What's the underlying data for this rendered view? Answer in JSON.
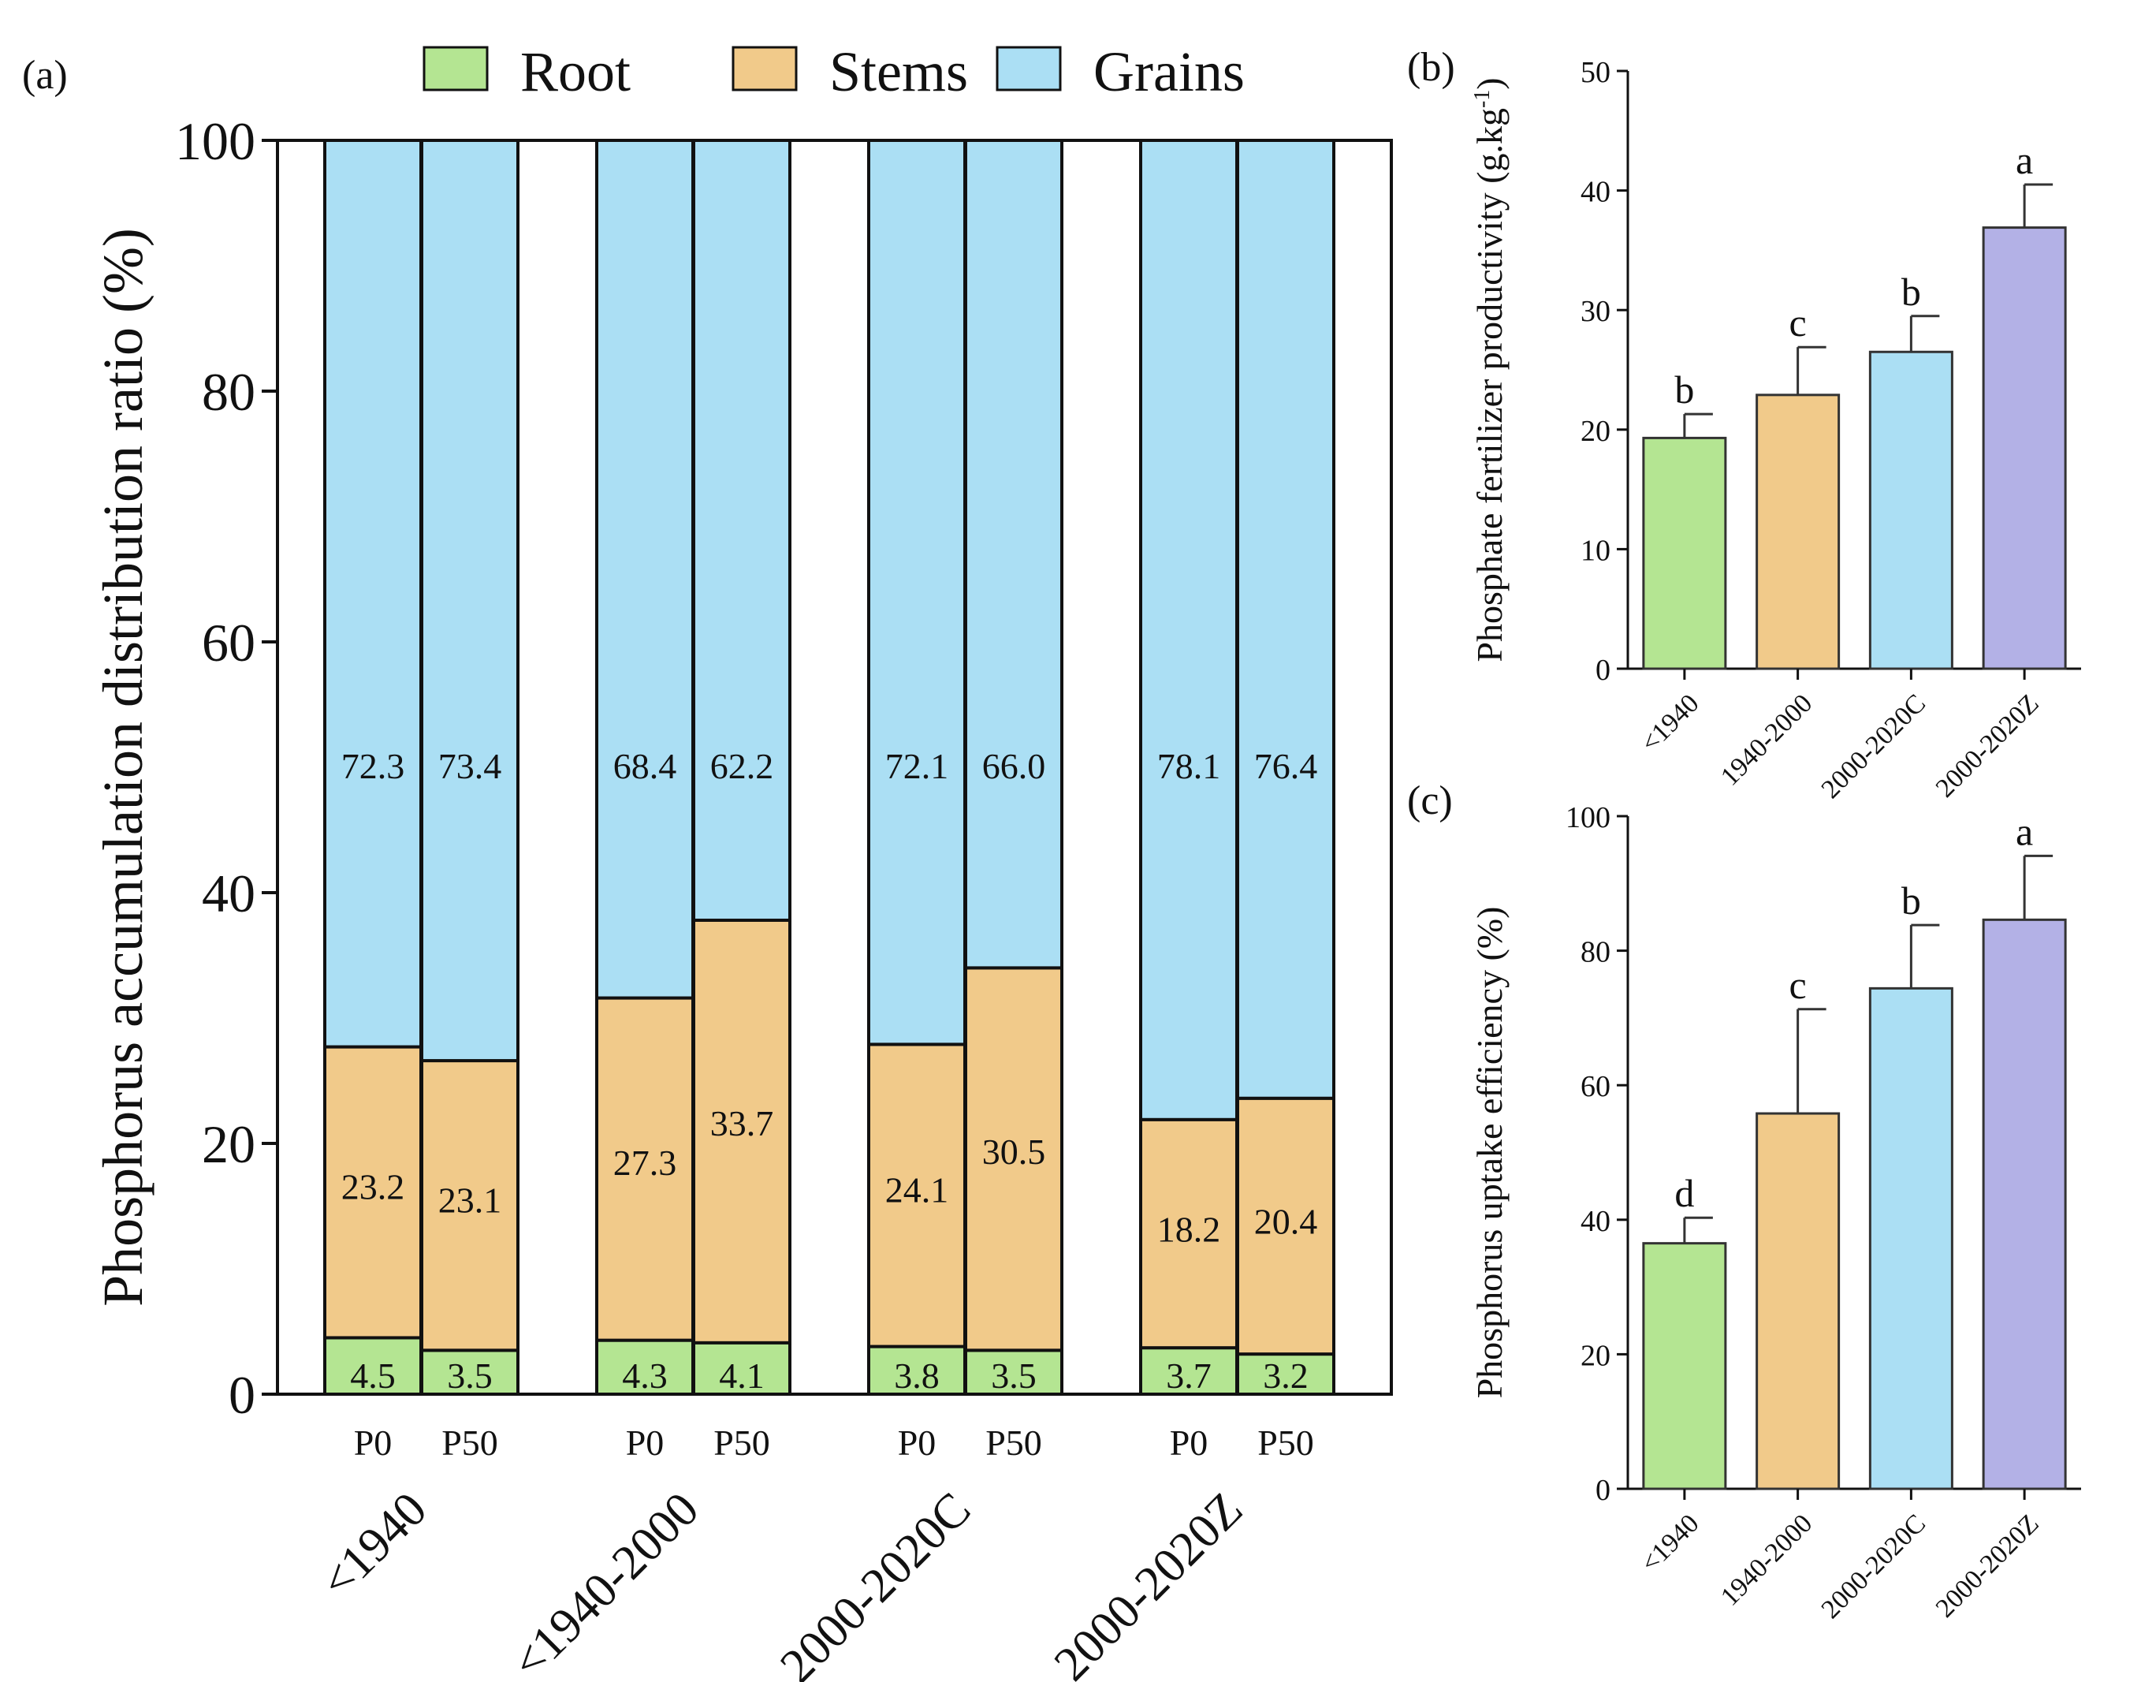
{
  "colors": {
    "root": "#b4e592",
    "stems": "#f1ca8a",
    "grains": "#abdff4",
    "late": "#b3b1e6",
    "axis": "#111111"
  },
  "chart_data": [
    {
      "panel": "(a)",
      "type": "bar",
      "stacked": true,
      "ylabel": "Phosphorus accumulation distribution ratio (%)",
      "ylim": [
        0,
        100
      ],
      "yticks": [
        0,
        20,
        40,
        60,
        80,
        100
      ],
      "legend": [
        "Root",
        "Stems",
        "Grains"
      ],
      "legend_position": "top",
      "groups": [
        "<1940",
        "<1940-2000",
        "2000-2020C",
        "2000-2020Z"
      ],
      "bar_labels": [
        "P0",
        "P50"
      ],
      "series": [
        {
          "name": "Root",
          "values": [
            [
              4.5,
              3.5
            ],
            [
              4.3,
              4.1
            ],
            [
              3.8,
              3.5
            ],
            [
              3.7,
              3.2
            ]
          ]
        },
        {
          "name": "Stems",
          "values": [
            [
              23.2,
              23.1
            ],
            [
              27.3,
              33.7
            ],
            [
              24.1,
              30.5
            ],
            [
              18.2,
              20.4
            ]
          ]
        },
        {
          "name": "Grains",
          "values": [
            [
              72.3,
              73.4
            ],
            [
              68.4,
              62.2
            ],
            [
              72.1,
              66.0
            ],
            [
              78.1,
              76.4
            ]
          ]
        }
      ],
      "value_labels": {
        "Root": [
          [
            "4.5",
            "3.5"
          ],
          [
            "4.3",
            "4.1"
          ],
          [
            "3.8",
            "3.5"
          ],
          [
            "3.7",
            "3.2"
          ]
        ],
        "Stems": [
          [
            "23.2",
            "23.1"
          ],
          [
            "27.3",
            "33.7"
          ],
          [
            "24.1",
            "30.5"
          ],
          [
            "18.2",
            "20.4"
          ]
        ],
        "Grains": [
          [
            "72.3",
            "73.4"
          ],
          [
            "68.4",
            "62.2"
          ],
          [
            "72.1",
            "66.0"
          ],
          [
            "78.1",
            "76.4"
          ]
        ]
      }
    },
    {
      "panel": "(b)",
      "type": "bar",
      "ylabel_main": "Phosphate fertilizer productivity (g.kg",
      "ylabel_sup": "-1",
      "ylabel_end": ")",
      "ylim": [
        0,
        50
      ],
      "yticks": [
        0,
        10,
        20,
        30,
        40,
        50
      ],
      "categories": [
        "<1940",
        "1940-2000",
        "2000-2020C",
        "2000-2020Z"
      ],
      "values": [
        19.3,
        22.9,
        26.5,
        36.9
      ],
      "errors": [
        2.0,
        4.0,
        3.0,
        3.6
      ],
      "letters": [
        "b",
        "c",
        "b",
        "a"
      ]
    },
    {
      "panel": "(c)",
      "type": "bar",
      "ylabel": "Phosphorus uptake efficiency (%)",
      "ylim": [
        0,
        100
      ],
      "yticks": [
        0,
        20,
        40,
        60,
        80,
        100
      ],
      "categories": [
        "<1940",
        "1940-2000",
        "2000-2020C",
        "2000-2020Z"
      ],
      "values": [
        36.5,
        55.8,
        74.4,
        84.6
      ],
      "errors": [
        3.8,
        15.5,
        9.4,
        9.5
      ],
      "letters": [
        "d",
        "c",
        "b",
        "a"
      ]
    }
  ]
}
